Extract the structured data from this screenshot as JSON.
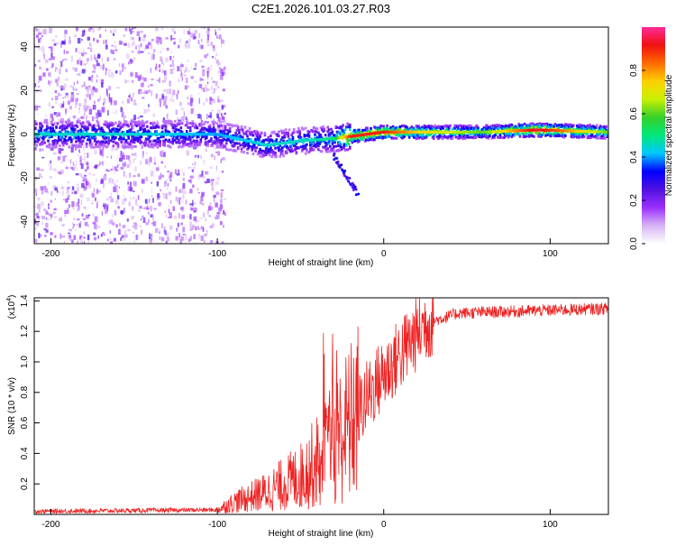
{
  "title": "C2E1.2026.101.03.27.R03",
  "chart_data": [
    {
      "type": "heatmap",
      "title": "C2E1.2026.101.03.27.R03",
      "xlabel": "Height of straight line (km)",
      "ylabel": "Frequency (Hz)",
      "xlim": [
        -210,
        135
      ],
      "ylim": [
        -50,
        49
      ],
      "xticks": [
        -200,
        -100,
        0,
        100
      ],
      "yticks": [
        40,
        20,
        0,
        -20,
        -40
      ],
      "colorbar": {
        "label": "Normalized spectral amplitude",
        "range": [
          0.0,
          1.0
        ],
        "ticks": [
          0.0,
          0.2,
          0.4,
          0.6,
          0.8
        ],
        "colors": [
          "#ffffff",
          "#d8b4f5",
          "#9b30ff",
          "#5010e0",
          "#0000ff",
          "#00c8ff",
          "#00e87a",
          "#36d02a",
          "#c8f000",
          "#ffd000",
          "#ff6a00",
          "#f01010",
          "#ff2a9a"
        ]
      },
      "ridge": [
        {
          "x": -210,
          "freq": 0,
          "amp": 0.45
        },
        {
          "x": -150,
          "freq": 0,
          "amp": 0.45
        },
        {
          "x": -100,
          "freq": 0,
          "amp": 0.4
        },
        {
          "x": -70,
          "freq": -5,
          "amp": 0.45
        },
        {
          "x": -50,
          "freq": -3,
          "amp": 0.45
        },
        {
          "x": -30,
          "freq": -2,
          "amp": 0.5
        },
        {
          "x": -20,
          "freq": -1,
          "amp": 0.9
        },
        {
          "x": 0,
          "freq": 1,
          "amp": 0.9
        },
        {
          "x": 20,
          "freq": 1,
          "amp": 0.75
        },
        {
          "x": 60,
          "freq": 1,
          "amp": 0.6
        },
        {
          "x": 92,
          "freq": 2,
          "amp": 0.95
        },
        {
          "x": 135,
          "freq": 1,
          "amp": 0.6
        }
      ]
    },
    {
      "type": "line",
      "xlabel": "Height of straight line (km)",
      "ylabel": "SNR (10 * v/v)",
      "scale_note": "(x10",
      "scale_exp": "4",
      "xlim": [
        -210,
        135
      ],
      "ylim": [
        0,
        1.42
      ],
      "xticks": [
        -200,
        -100,
        0,
        100
      ],
      "yticks": [
        1.4,
        1.2,
        1.0,
        0.8,
        0.6,
        0.4,
        0.2
      ],
      "color": "#ee2222",
      "envelope": [
        {
          "x": -210,
          "y": 0.02
        },
        {
          "x": -100,
          "y": 0.03
        },
        {
          "x": -90,
          "y": 0.08
        },
        {
          "x": -70,
          "y": 0.15
        },
        {
          "x": -50,
          "y": 0.25
        },
        {
          "x": -35,
          "y": 0.4
        },
        {
          "x": -20,
          "y": 0.6
        },
        {
          "x": -5,
          "y": 0.85
        },
        {
          "x": 10,
          "y": 1.05
        },
        {
          "x": 25,
          "y": 1.25
        },
        {
          "x": 45,
          "y": 1.32
        },
        {
          "x": 135,
          "y": 1.35
        }
      ],
      "peaks": [
        {
          "x": -30,
          "y": 1.22
        },
        {
          "x": -37,
          "y": 0.9
        },
        {
          "x": 80,
          "y": 1.4
        }
      ]
    }
  ]
}
